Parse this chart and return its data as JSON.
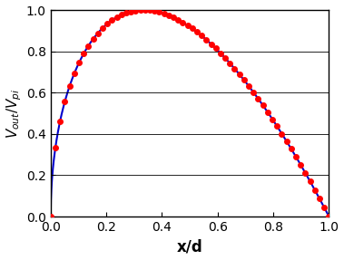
{
  "title": "",
  "xlabel": "x/d",
  "ylabel": "$V_{out}/V_{pi}$",
  "xlim": [
    0,
    1
  ],
  "ylim": [
    0,
    1
  ],
  "xticks": [
    0,
    0.2,
    0.4,
    0.6,
    0.8,
    1.0
  ],
  "yticks": [
    0,
    0.2,
    0.4,
    0.6,
    0.8,
    1.0
  ],
  "line_color": "#0000cc",
  "marker_color": "#ff0000",
  "marker": "o",
  "marker_size": 4,
  "line_width": 1.5,
  "n_points": 60,
  "background_color": "#ffffff",
  "grid_color": "#000000",
  "xlabel_fontsize": 12,
  "ylabel_fontsize": 11
}
